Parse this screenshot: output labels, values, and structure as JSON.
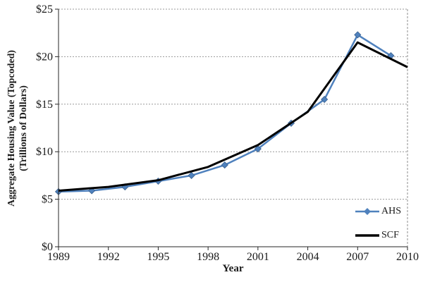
{
  "chart_data": {
    "type": "line",
    "title": "",
    "xlabel": "Year",
    "ylabel": "Aggregate Housing Value (Topcoded) (Trillions of Dollars)",
    "ylabel_lines": [
      "Aggregate Housing Value (Topcoded)",
      "(Trillions of Dollars)"
    ],
    "xlim": [
      1989,
      2010
    ],
    "ylim": [
      0,
      25
    ],
    "x_ticks": {
      "values": [
        1989,
        1992,
        1995,
        1998,
        2001,
        2004,
        2007,
        2010
      ],
      "labels": [
        "1989",
        "1992",
        "1995",
        "1998",
        "2001",
        "2004",
        "2007",
        "2010"
      ]
    },
    "y_ticks": {
      "values": [
        0,
        5,
        10,
        15,
        20,
        25
      ],
      "labels": [
        "$0",
        "$5",
        "$10",
        "$15",
        "$20",
        "$25"
      ]
    },
    "grid": {
      "horizontal": true,
      "style": "dotted",
      "color": "#999999"
    },
    "axis_color": "#262626",
    "legend": {
      "position": "inside-bottom-right"
    },
    "series": [
      {
        "name": "AHS",
        "color": "#4F81BD",
        "marker": "diamond",
        "line_width": 2.5,
        "x": [
          1989,
          1991,
          1993,
          1995,
          1997,
          1999,
          2001,
          2003,
          2005,
          2007,
          2009
        ],
        "values": [
          5.8,
          5.9,
          6.3,
          6.9,
          7.5,
          8.6,
          10.3,
          13.0,
          15.5,
          22.3,
          20.1
        ]
      },
      {
        "name": "SCF",
        "color": "#000000",
        "marker": "none",
        "line_width": 3,
        "x": [
          1989,
          1992,
          1995,
          1998,
          2001,
          2004,
          2007,
          2010
        ],
        "values": [
          5.9,
          6.3,
          7.0,
          8.4,
          10.7,
          14.2,
          21.5,
          18.9
        ]
      }
    ]
  }
}
